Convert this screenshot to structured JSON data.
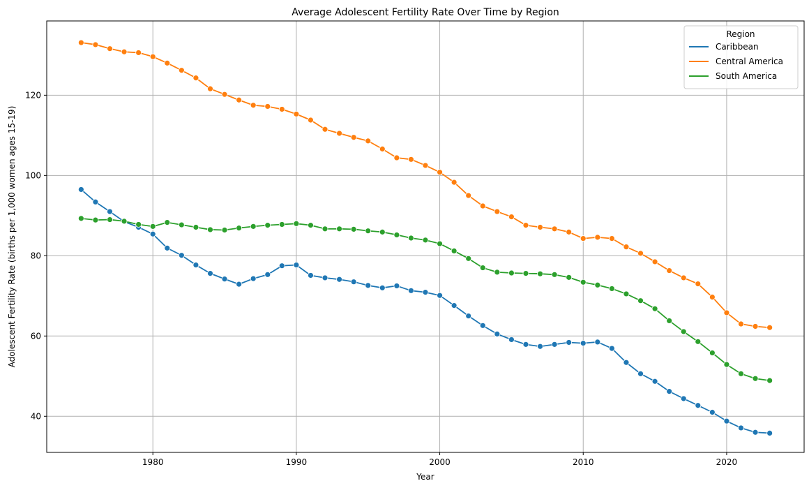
{
  "chart_data": {
    "type": "line",
    "title": "Average Adolescent Fertility Rate Over Time by Region",
    "xlabel": "Year",
    "ylabel": "Adolescent Fertility Rate (births per 1,000 women ages 15-19)",
    "xlim": [
      1972.6,
      2025.4
    ],
    "ylim": [
      31,
      138.5
    ],
    "xticks": [
      1980,
      1990,
      2000,
      2010,
      2020
    ],
    "yticks": [
      40,
      60,
      80,
      100,
      120
    ],
    "grid": true,
    "legend": {
      "title": "Region",
      "position": "top-right"
    },
    "x": [
      1975,
      1976,
      1977,
      1978,
      1979,
      1980,
      1981,
      1982,
      1983,
      1984,
      1985,
      1986,
      1987,
      1988,
      1989,
      1990,
      1991,
      1992,
      1993,
      1994,
      1995,
      1996,
      1997,
      1998,
      1999,
      2000,
      2001,
      2002,
      2003,
      2004,
      2005,
      2006,
      2007,
      2008,
      2009,
      2010,
      2011,
      2012,
      2013,
      2014,
      2015,
      2016,
      2017,
      2018,
      2019,
      2020,
      2021,
      2022,
      2023
    ],
    "series": [
      {
        "name": "Caribbean",
        "color": "#1f77b4",
        "values": [
          96.5,
          93.4,
          91.0,
          88.5,
          87.1,
          85.4,
          81.9,
          80.1,
          77.7,
          75.6,
          74.2,
          72.9,
          74.3,
          75.3,
          77.5,
          77.7,
          75.1,
          74.5,
          74.1,
          73.5,
          72.6,
          72.0,
          72.5,
          71.3,
          70.9,
          70.1,
          67.6,
          65.0,
          62.6,
          60.5,
          59.1,
          57.9,
          57.4,
          57.9,
          58.4,
          58.2,
          58.5,
          56.9,
          53.4,
          50.6,
          48.7,
          46.2,
          44.4,
          42.7,
          41.0,
          38.8,
          37.1,
          36.0,
          35.8
        ]
      },
      {
        "name": "Central America",
        "color": "#ff7f0e",
        "values": [
          133.1,
          132.6,
          131.6,
          130.8,
          130.6,
          129.6,
          128.0,
          126.2,
          124.3,
          121.6,
          120.2,
          118.8,
          117.5,
          117.2,
          116.5,
          115.3,
          113.8,
          111.5,
          110.5,
          109.5,
          108.6,
          106.6,
          104.4,
          104.0,
          102.5,
          100.8,
          98.3,
          95.0,
          92.4,
          91.0,
          89.7,
          87.6,
          87.1,
          86.7,
          85.9,
          84.3,
          84.6,
          84.3,
          82.2,
          80.6,
          78.5,
          76.3,
          74.5,
          73.0,
          69.7,
          65.8,
          63.0,
          62.4,
          62.1
        ]
      },
      {
        "name": "South America",
        "color": "#2ca02c",
        "values": [
          89.3,
          88.9,
          89.0,
          88.6,
          87.8,
          87.3,
          88.3,
          87.7,
          87.1,
          86.5,
          86.4,
          86.9,
          87.3,
          87.6,
          87.8,
          88.0,
          87.6,
          86.7,
          86.7,
          86.6,
          86.2,
          85.9,
          85.2,
          84.4,
          83.9,
          83.0,
          81.2,
          79.3,
          77.0,
          75.9,
          75.7,
          75.6,
          75.5,
          75.3,
          74.6,
          73.4,
          72.7,
          71.8,
          70.5,
          68.8,
          66.8,
          63.8,
          61.1,
          58.6,
          55.8,
          52.9,
          50.6,
          49.4,
          48.9
        ]
      }
    ]
  }
}
